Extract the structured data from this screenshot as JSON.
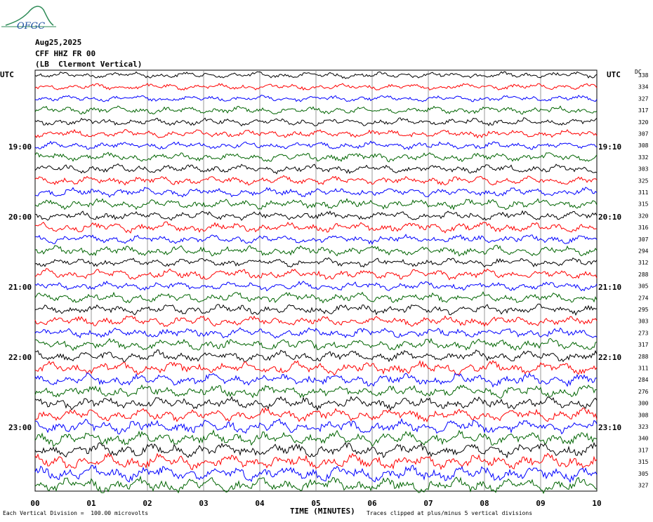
{
  "header": {
    "logo_text": "OFGC",
    "date": "Aug25,2025",
    "station": "CFF HHZ FR 00",
    "location": "(LB  Clermont Vertical)"
  },
  "utc_label_left": "UTC",
  "utc_label_right": "UTC",
  "dc_label": "DC",
  "left_time_labels": [
    "19:00",
    "20:00",
    "21:00",
    "22:00",
    "23:00"
  ],
  "right_time_labels": [
    "19:10",
    "20:10",
    "21:10",
    "22:10",
    "23:10"
  ],
  "x_ticks": [
    "00",
    "01",
    "02",
    "03",
    "04",
    "05",
    "06",
    "07",
    "08",
    "09",
    "10"
  ],
  "x_title": "TIME (MINUTES)",
  "footer": {
    "left": "Each Vertical Division =  100.00 microvolts",
    "right": "Traces clipped at plus/minus 5 vertical divisions"
  },
  "colors": {
    "black": "#000000",
    "red": "#ff0000",
    "blue": "#0000ff",
    "green": "#006400",
    "grid": "#808080"
  },
  "chart_data": {
    "type": "line",
    "x_range_minutes": [
      0,
      10
    ],
    "grid": true,
    "trace_colors": [
      "black",
      "red",
      "blue",
      "green"
    ],
    "dc_values": [
      "338",
      "334",
      "327",
      "317",
      "320",
      "307",
      "308",
      "332",
      "303",
      "325",
      "311",
      "315",
      "320",
      "316",
      "307",
      "294",
      "312",
      "288",
      "305",
      "274",
      "295",
      "303",
      "273",
      "317",
      "288",
      "311",
      "284",
      "276",
      "300",
      "308",
      "323",
      "340",
      "317",
      "315",
      "305",
      "327"
    ],
    "trace_amplitude": [
      0.25,
      0.25,
      0.25,
      0.3,
      0.3,
      0.3,
      0.3,
      0.35,
      0.35,
      0.35,
      0.35,
      0.4,
      0.35,
      0.4,
      0.35,
      0.4,
      0.35,
      0.4,
      0.35,
      0.4,
      0.4,
      0.4,
      0.4,
      0.45,
      0.45,
      0.5,
      0.5,
      0.5,
      0.5,
      0.5,
      0.55,
      0.55,
      0.55,
      0.6,
      0.6,
      0.6
    ]
  }
}
